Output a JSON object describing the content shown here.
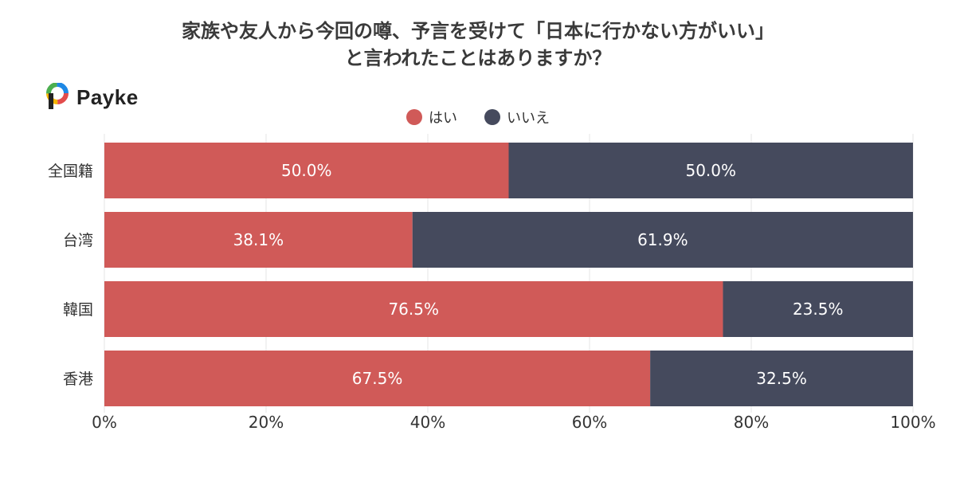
{
  "chart_data": {
    "type": "bar",
    "orientation": "horizontal",
    "stacked": true,
    "title_lines": [
      "家族や友人から今回の噂、予言を受けて「日本に行かない方がいい」",
      "と言われたことはありますか？"
    ],
    "categories": [
      "全国籍",
      "台湾",
      "韓国",
      "香港"
    ],
    "series": [
      {
        "name": "はい",
        "values": [
          50.0,
          38.1,
          76.5,
          67.5
        ],
        "color": "#d05a58"
      },
      {
        "name": "いいえ",
        "values": [
          50.0,
          61.9,
          23.5,
          32.5
        ],
        "color": "#454a5d"
      }
    ],
    "data_labels": [
      [
        "50.0%",
        "38.1%",
        "76.5%",
        "67.5%"
      ],
      [
        "50.0%",
        "61.9%",
        "23.5%",
        "32.5%"
      ]
    ],
    "xlim": [
      0,
      100
    ],
    "x_ticks": [
      0,
      20,
      40,
      60,
      80,
      100
    ],
    "x_tick_labels": [
      "0%",
      "20%",
      "40%",
      "60%",
      "80%",
      "100%"
    ],
    "grid": true,
    "legend_position": "top-center"
  },
  "brand": {
    "name": "Payke",
    "logo_icon": "payke-logo-icon"
  }
}
